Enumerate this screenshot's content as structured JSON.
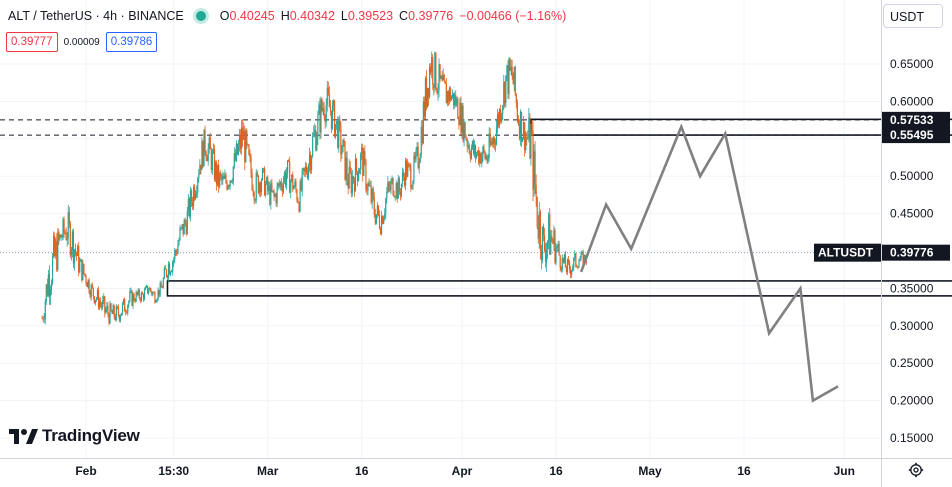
{
  "header": {
    "symbol": "ALT / TetherUS · 4h · BINANCE",
    "open_label": "O",
    "open": "0.40245",
    "high_label": "H",
    "high": "0.40342",
    "low_label": "L",
    "low": "0.39523",
    "close_label": "C",
    "close": "0.39776",
    "change": "−0.00466 (−1.16%)"
  },
  "trade": {
    "sell": "0.39777",
    "spread": "0.00009",
    "buy": "0.39786"
  },
  "currency": "USDT",
  "brand": "TradingView",
  "colors": {
    "up": "#26a69a",
    "down": "#e0621e",
    "path": "#808080",
    "tag": "#131722"
  },
  "chart_data": {
    "type": "candlestick",
    "symbol": "ALTUSDT",
    "timeframe": "4h",
    "ylim": [
      0.13,
      0.69
    ],
    "y_ticks": [
      0.15,
      0.2,
      0.25,
      0.3,
      0.35,
      0.4,
      0.45,
      0.5,
      0.55,
      0.6,
      0.65
    ],
    "y_tick_labels": [
      "0.15000",
      "0.20000",
      "0.25000",
      "0.30000",
      "0.35000",
      "0.40000",
      "0.45000",
      "0.50000",
      "0.55000",
      "0.60000",
      "0.65000"
    ],
    "x_ticks": [
      "Feb",
      "15:30",
      "Mar",
      "16",
      "Apr",
      "16",
      "May",
      "16",
      "Jun"
    ],
    "x_tick_dates": [
      "2024-02-01",
      "2024-02-15",
      "2024-03-01",
      "2024-03-16",
      "2024-04-01",
      "2024-04-16",
      "2024-05-01",
      "2024-05-16",
      "2024-06-01"
    ],
    "last_price": 0.39776,
    "last_price_label": "ALTUSDT",
    "last_price_value": "0.39776",
    "level_tags": [
      {
        "value": 0.57533,
        "label": "0.57533"
      },
      {
        "value": 0.55495,
        "label": "0.55495"
      }
    ],
    "zones": [
      {
        "name": "resistance",
        "from": "2024-04-12",
        "to": "2024-06-26",
        "low": 0.555,
        "high": 0.576
      },
      {
        "name": "support",
        "from": "2024-02-14",
        "to": "2024-06-26",
        "low": 0.34,
        "high": 0.36
      }
    ],
    "price_series": [
      [
        "2024-01-25",
        0.29,
        0.33
      ],
      [
        "2024-01-26",
        0.33,
        0.4
      ],
      [
        "2024-01-27",
        0.35,
        0.43
      ],
      [
        "2024-01-28",
        0.4,
        0.44
      ],
      [
        "2024-01-29",
        0.4,
        0.46
      ],
      [
        "2024-01-30",
        0.38,
        0.44
      ],
      [
        "2024-01-31",
        0.36,
        0.4
      ],
      [
        "2024-02-01",
        0.35,
        0.38
      ],
      [
        "2024-02-02",
        0.33,
        0.36
      ],
      [
        "2024-02-03",
        0.32,
        0.35
      ],
      [
        "2024-02-04",
        0.3,
        0.34
      ],
      [
        "2024-02-05",
        0.3,
        0.33
      ],
      [
        "2024-02-06",
        0.3,
        0.33
      ],
      [
        "2024-02-07",
        0.31,
        0.34
      ],
      [
        "2024-02-08",
        0.32,
        0.35
      ],
      [
        "2024-02-09",
        0.33,
        0.35
      ],
      [
        "2024-02-10",
        0.33,
        0.35
      ],
      [
        "2024-02-11",
        0.34,
        0.36
      ],
      [
        "2024-02-12",
        0.33,
        0.35
      ],
      [
        "2024-02-13",
        0.34,
        0.36
      ],
      [
        "2024-02-14",
        0.36,
        0.4
      ],
      [
        "2024-02-15",
        0.37,
        0.41
      ],
      [
        "2024-02-16",
        0.4,
        0.44
      ],
      [
        "2024-02-17",
        0.42,
        0.46
      ],
      [
        "2024-02-18",
        0.45,
        0.5
      ],
      [
        "2024-02-19",
        0.49,
        0.54
      ],
      [
        "2024-02-20",
        0.52,
        0.57
      ],
      [
        "2024-02-21",
        0.5,
        0.55
      ],
      [
        "2024-02-22",
        0.47,
        0.52
      ],
      [
        "2024-02-23",
        0.47,
        0.51
      ],
      [
        "2024-02-24",
        0.48,
        0.52
      ],
      [
        "2024-02-25",
        0.5,
        0.55
      ],
      [
        "2024-02-26",
        0.52,
        0.59
      ],
      [
        "2024-02-27",
        0.49,
        0.54
      ],
      [
        "2024-02-28",
        0.46,
        0.51
      ],
      [
        "2024-02-29",
        0.48,
        0.52
      ],
      [
        "2024-03-01",
        0.46,
        0.5
      ],
      [
        "2024-03-02",
        0.45,
        0.49
      ],
      [
        "2024-03-03",
        0.47,
        0.51
      ],
      [
        "2024-03-04",
        0.48,
        0.53
      ],
      [
        "2024-03-05",
        0.47,
        0.51
      ],
      [
        "2024-03-06",
        0.45,
        0.49
      ],
      [
        "2024-03-07",
        0.48,
        0.53
      ],
      [
        "2024-03-08",
        0.51,
        0.57
      ],
      [
        "2024-03-09",
        0.54,
        0.6
      ],
      [
        "2024-03-10",
        0.57,
        0.63
      ],
      [
        "2024-03-11",
        0.56,
        0.62
      ],
      [
        "2024-03-12",
        0.54,
        0.59
      ],
      [
        "2024-03-13",
        0.5,
        0.56
      ],
      [
        "2024-03-14",
        0.46,
        0.52
      ],
      [
        "2024-03-15",
        0.48,
        0.53
      ],
      [
        "2024-03-16",
        0.5,
        0.55
      ],
      [
        "2024-03-17",
        0.46,
        0.51
      ],
      [
        "2024-03-18",
        0.43,
        0.48
      ],
      [
        "2024-03-19",
        0.42,
        0.46
      ],
      [
        "2024-03-20",
        0.45,
        0.5
      ],
      [
        "2024-03-21",
        0.47,
        0.51
      ],
      [
        "2024-03-22",
        0.46,
        0.5
      ],
      [
        "2024-03-23",
        0.49,
        0.53
      ],
      [
        "2024-03-24",
        0.48,
        0.52
      ],
      [
        "2024-03-25",
        0.5,
        0.55
      ],
      [
        "2024-03-26",
        0.56,
        0.63
      ],
      [
        "2024-03-27",
        0.62,
        0.69
      ],
      [
        "2024-03-28",
        0.6,
        0.66
      ],
      [
        "2024-03-29",
        0.58,
        0.64
      ],
      [
        "2024-03-30",
        0.59,
        0.63
      ],
      [
        "2024-03-31",
        0.58,
        0.62
      ],
      [
        "2024-04-01",
        0.55,
        0.6
      ],
      [
        "2024-04-02",
        0.52,
        0.57
      ],
      [
        "2024-04-03",
        0.51,
        0.55
      ],
      [
        "2024-04-04",
        0.51,
        0.55
      ],
      [
        "2024-04-05",
        0.5,
        0.55
      ],
      [
        "2024-04-06",
        0.52,
        0.58
      ],
      [
        "2024-04-07",
        0.56,
        0.61
      ],
      [
        "2024-04-08",
        0.6,
        0.66
      ],
      [
        "2024-04-09",
        0.6,
        0.67
      ],
      [
        "2024-04-10",
        0.55,
        0.61
      ],
      [
        "2024-04-11",
        0.53,
        0.58
      ],
      [
        "2024-04-12",
        0.5,
        0.59
      ],
      [
        "2024-04-13",
        0.4,
        0.51
      ],
      [
        "2024-04-14",
        0.37,
        0.44
      ],
      [
        "2024-04-15",
        0.38,
        0.46
      ],
      [
        "2024-04-16",
        0.38,
        0.43
      ],
      [
        "2024-04-17",
        0.37,
        0.4
      ],
      [
        "2024-04-18",
        0.36,
        0.39
      ],
      [
        "2024-04-19",
        0.37,
        0.4
      ],
      [
        "2024-04-20",
        0.38,
        0.4
      ]
    ],
    "projection": [
      [
        "2024-04-20",
        0.372
      ],
      [
        "2024-04-24",
        0.462
      ],
      [
        "2024-04-28",
        0.403
      ],
      [
        "2024-05-06",
        0.566
      ],
      [
        "2024-05-09",
        0.5
      ],
      [
        "2024-05-13",
        0.557
      ],
      [
        "2024-05-20",
        0.29
      ],
      [
        "2024-05-25",
        0.35
      ],
      [
        "2024-05-27",
        0.2
      ],
      [
        "2024-05-31",
        0.219
      ]
    ]
  }
}
